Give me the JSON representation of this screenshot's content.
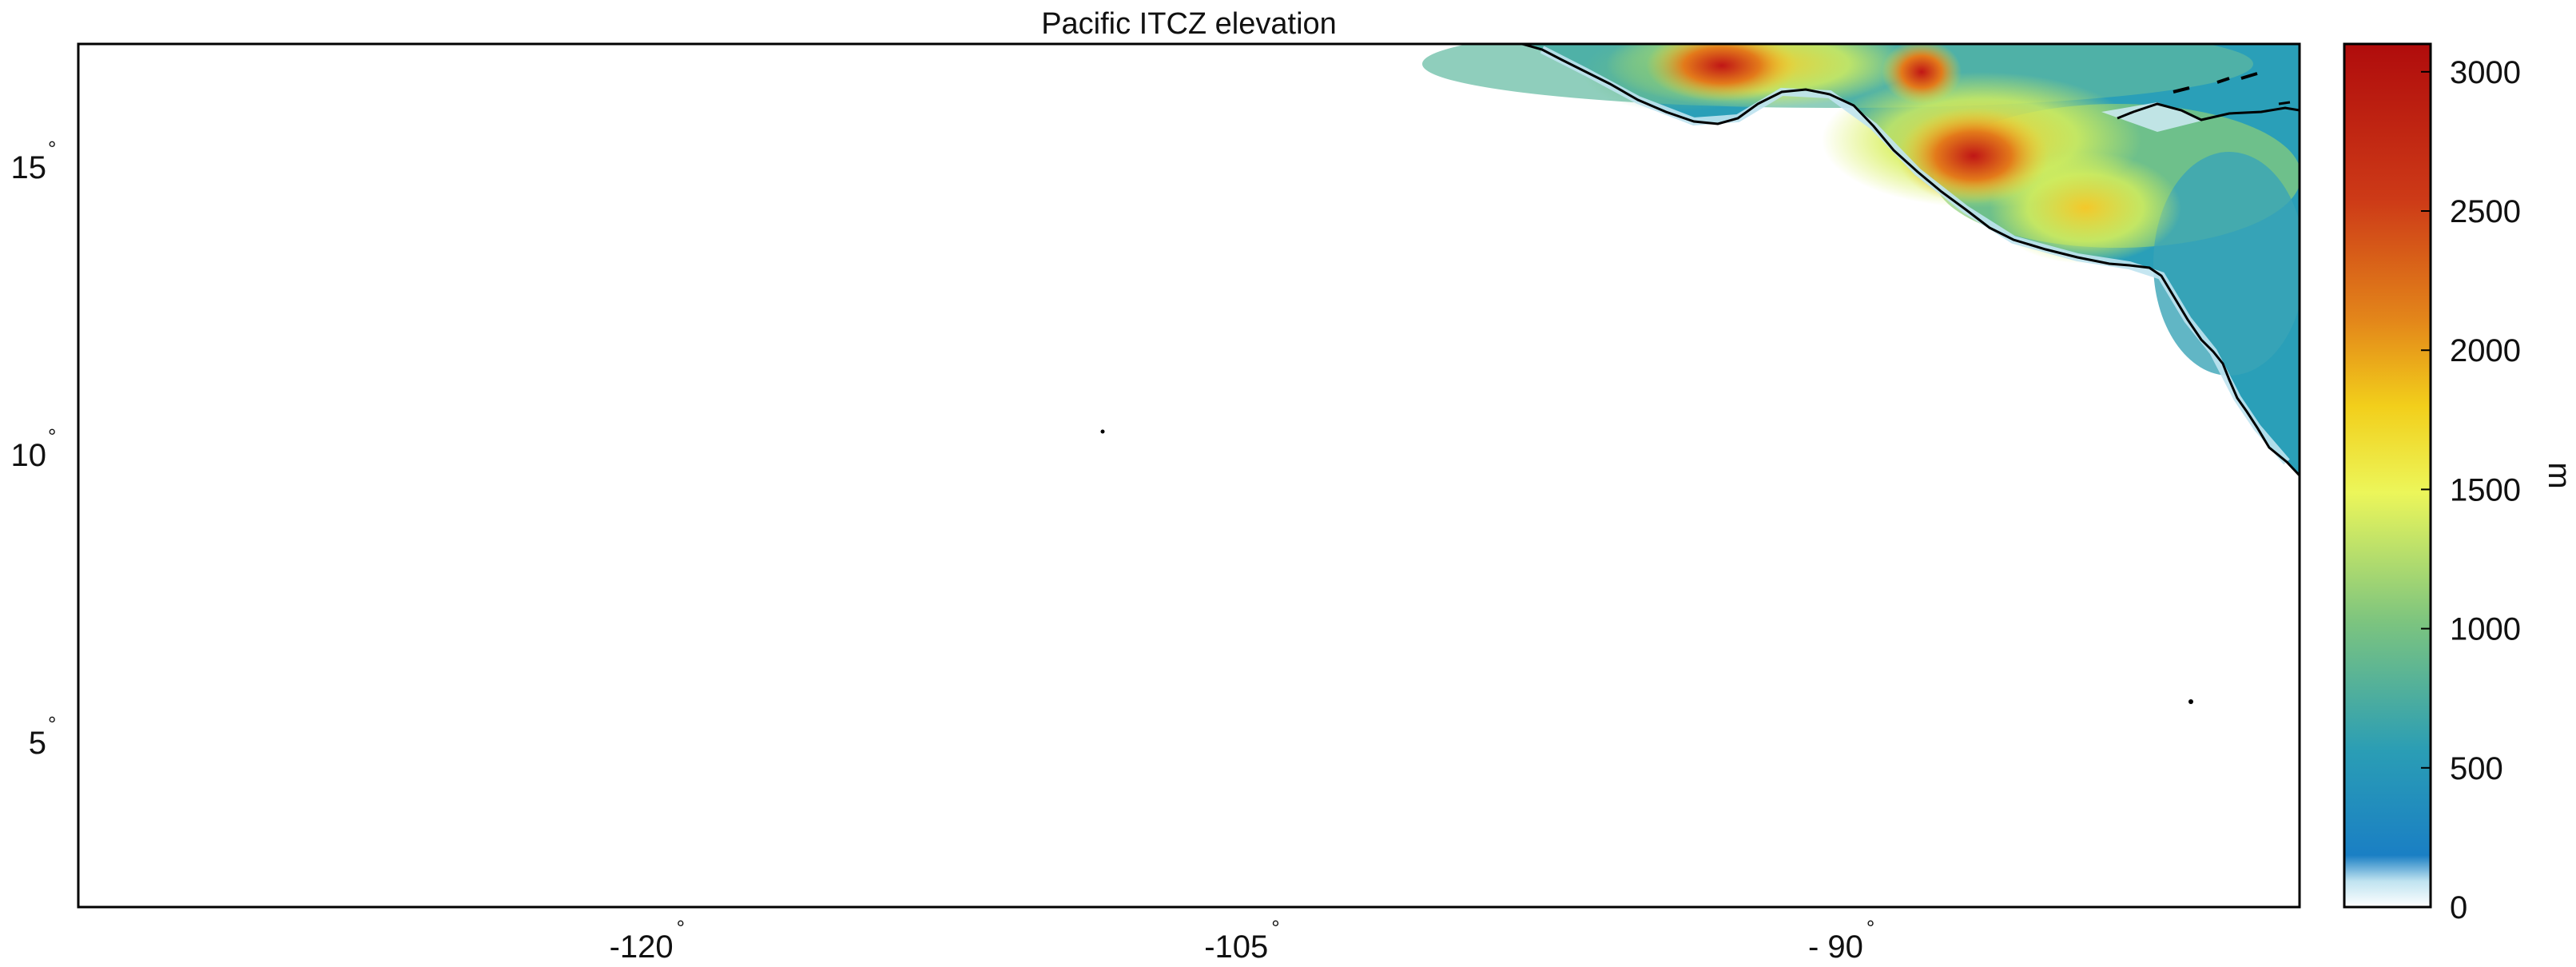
{
  "title": "Pacific ITCZ elevation",
  "map": {
    "projection": "plate-carree",
    "lon_range": [
      -135,
      -79
    ],
    "lat_range": [
      2,
      17
    ],
    "x_ticks": [
      {
        "value": -120,
        "label": "-120"
      },
      {
        "value": -105,
        "label": "-105"
      },
      {
        "value": -90,
        "label": "- 90"
      }
    ],
    "y_ticks": [
      {
        "value": 15,
        "label": "15"
      },
      {
        "value": 10,
        "label": "10"
      },
      {
        "value": 5,
        "label": "5"
      }
    ],
    "degree_symbol": "°",
    "coastline_color": "#000000",
    "ocean_color": "#ffffff",
    "land_fill": "elevation colormap (parula-like, low = blue, high = red)"
  },
  "colorbar": {
    "label": "m",
    "range": [
      0,
      3100
    ],
    "ticks": [
      {
        "value": 0,
        "label": "0"
      },
      {
        "value": 500,
        "label": "500"
      },
      {
        "value": 1000,
        "label": "1000"
      },
      {
        "value": 1500,
        "label": "1500"
      },
      {
        "value": 2000,
        "label": "2000"
      },
      {
        "value": 2500,
        "label": "2500"
      },
      {
        "value": 3000,
        "label": "3000"
      }
    ],
    "colors": [
      "#ffffff",
      "#bfe3f0",
      "#1a7fc4",
      "#2a9db5",
      "#7cc47f",
      "#ecf65a",
      "#f2cf1b",
      "#e3861a",
      "#cd3a17",
      "#b00c0c"
    ]
  }
}
